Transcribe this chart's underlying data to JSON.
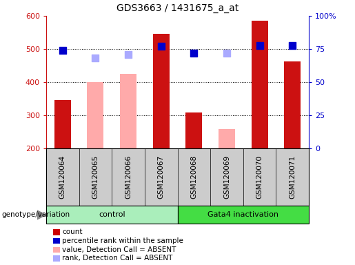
{
  "title": "GDS3663 / 1431675_a_at",
  "samples": [
    "GSM120064",
    "GSM120065",
    "GSM120066",
    "GSM120067",
    "GSM120068",
    "GSM120069",
    "GSM120070",
    "GSM120071"
  ],
  "absent": [
    false,
    true,
    true,
    false,
    false,
    true,
    false,
    false
  ],
  "count_values": [
    345,
    200,
    200,
    546,
    308,
    200,
    585,
    462
  ],
  "absent_bar_values": [
    200,
    400,
    425,
    200,
    200,
    258,
    200,
    200
  ],
  "percentile_values": [
    74.0,
    0,
    0,
    77.0,
    72.0,
    0,
    77.5,
    77.5
  ],
  "absent_rank_values": [
    0,
    68.0,
    71.0,
    0,
    0,
    72.0,
    0,
    0
  ],
  "ylim_left": [
    200,
    600
  ],
  "ylim_right": [
    0,
    100
  ],
  "yticks_left": [
    200,
    300,
    400,
    500,
    600
  ],
  "yticks_right": [
    0,
    25,
    50,
    75,
    100
  ],
  "ytick_labels_right": [
    "0",
    "25",
    "50",
    "75",
    "100%"
  ],
  "grid_values": [
    300,
    400,
    500
  ],
  "bar_bottom": 200,
  "control_label": "control",
  "gata4_label": "Gata4 inactivation",
  "genotype_label": "genotype/variation",
  "legend_items": [
    {
      "label": "count",
      "color": "#cc0000"
    },
    {
      "label": "percentile rank within the sample",
      "color": "#0000cc"
    },
    {
      "label": "value, Detection Call = ABSENT",
      "color": "#ffaaaa"
    },
    {
      "label": "rank, Detection Call = ABSENT",
      "color": "#aaaaff"
    }
  ],
  "red_bar_color": "#cc1111",
  "pink_bar_color": "#ffaaaa",
  "blue_dot_color": "#0000cc",
  "light_blue_dot_color": "#aaaaff",
  "control_bg": "#aaeebb",
  "gata4_bg": "#44dd44",
  "sample_bg": "#cccccc",
  "figsize": [
    5.15,
    3.84
  ],
  "dpi": 100
}
